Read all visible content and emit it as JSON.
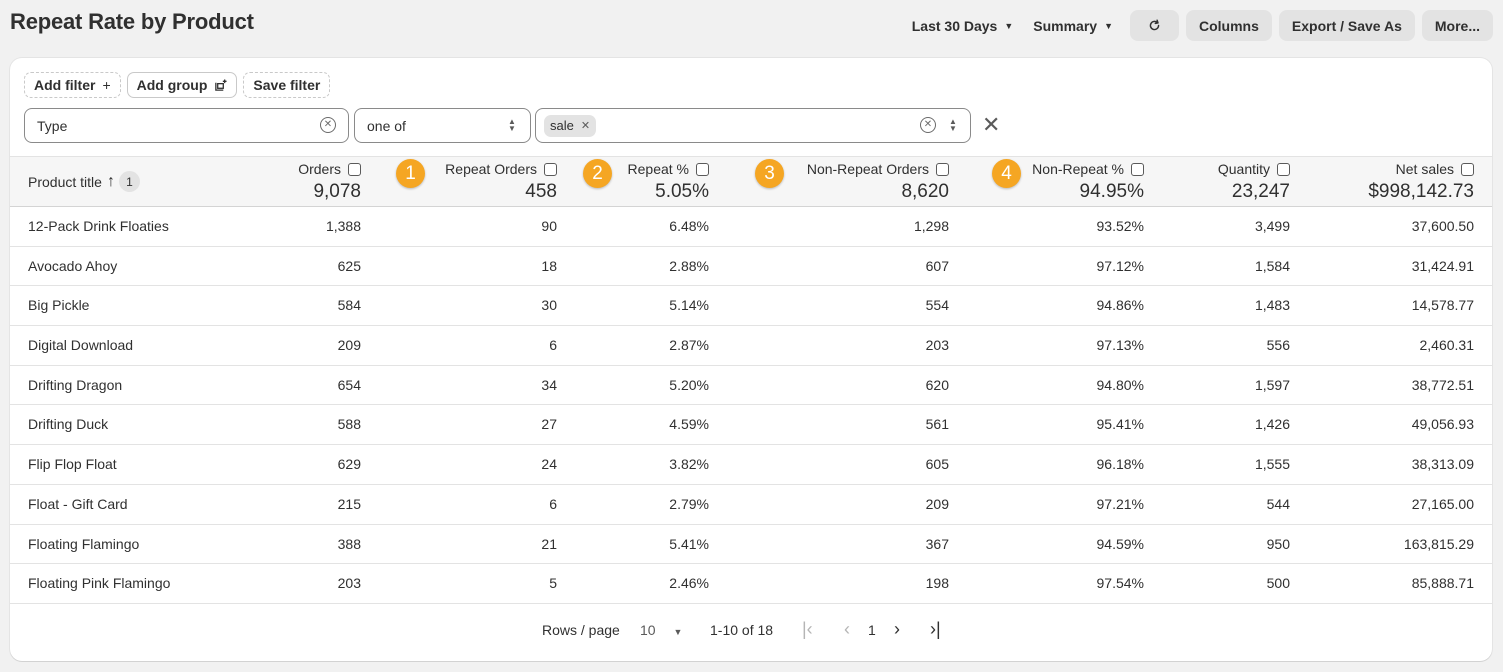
{
  "title": "Repeat Rate by Product",
  "toolbar": {
    "date_range": "Last 30 Days",
    "view": "Summary",
    "refresh_icon": "refresh-icon",
    "columns_label": "Columns",
    "export_label": "Export / Save As",
    "more_label": "More..."
  },
  "filter_actions": {
    "add_filter": "Add filter",
    "add_group": "Add group",
    "save_filter": "Save filter"
  },
  "filter": {
    "field": "Type",
    "operator": "one of",
    "values": [
      "sale"
    ]
  },
  "colors": {
    "marker": "#f5a623",
    "header_bg": "#f6f6f6",
    "card_bg": "#ffffff",
    "page_bg": "#f1f1f1"
  },
  "table": {
    "first_column": "Product title",
    "sort_badge": "1",
    "columns": [
      {
        "label": "Orders",
        "total": "9,078",
        "marker": ""
      },
      {
        "label": "Repeat Orders",
        "total": "458",
        "marker": "1"
      },
      {
        "label": "Repeat %",
        "total": "5.05%",
        "marker": "2"
      },
      {
        "label": "Non-Repeat Orders",
        "total": "8,620",
        "marker": "3"
      },
      {
        "label": "Non-Repeat %",
        "total": "94.95%",
        "marker": "4"
      },
      {
        "label": "Quantity",
        "total": "23,247",
        "marker": ""
      },
      {
        "label": "Net sales",
        "total": "$998,142.73",
        "marker": ""
      }
    ],
    "rows": [
      {
        "title": "12-Pack Drink Floaties",
        "values": [
          "1,388",
          "90",
          "6.48%",
          "1,298",
          "93.52%",
          "3,499",
          "37,600.50"
        ]
      },
      {
        "title": "Avocado Ahoy",
        "values": [
          "625",
          "18",
          "2.88%",
          "607",
          "97.12%",
          "1,584",
          "31,424.91"
        ]
      },
      {
        "title": "Big Pickle",
        "values": [
          "584",
          "30",
          "5.14%",
          "554",
          "94.86%",
          "1,483",
          "14,578.77"
        ]
      },
      {
        "title": "Digital Download",
        "values": [
          "209",
          "6",
          "2.87%",
          "203",
          "97.13%",
          "556",
          "2,460.31"
        ]
      },
      {
        "title": "Drifting Dragon",
        "values": [
          "654",
          "34",
          "5.20%",
          "620",
          "94.80%",
          "1,597",
          "38,772.51"
        ]
      },
      {
        "title": "Drifting Duck",
        "values": [
          "588",
          "27",
          "4.59%",
          "561",
          "95.41%",
          "1,426",
          "49,056.93"
        ]
      },
      {
        "title": "Flip Flop Float",
        "values": [
          "629",
          "24",
          "3.82%",
          "605",
          "96.18%",
          "1,555",
          "38,313.09"
        ]
      },
      {
        "title": "Float - Gift Card",
        "values": [
          "215",
          "6",
          "2.79%",
          "209",
          "97.21%",
          "544",
          "27,165.00"
        ]
      },
      {
        "title": "Floating Flamingo",
        "values": [
          "388",
          "21",
          "5.41%",
          "367",
          "94.59%",
          "950",
          "163,815.29"
        ]
      },
      {
        "title": "Floating Pink Flamingo",
        "values": [
          "203",
          "5",
          "2.46%",
          "198",
          "97.54%",
          "500",
          "85,888.71"
        ]
      }
    ]
  },
  "pagination": {
    "rows_per_page_label": "Rows / page",
    "rows_per_page": "10",
    "range": "1-10 of 18",
    "current_page": "1"
  }
}
